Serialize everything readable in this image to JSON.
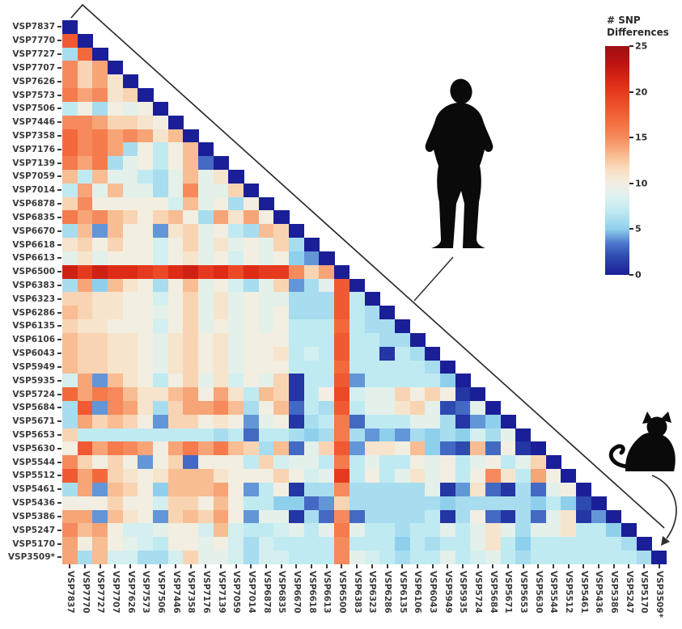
{
  "figure": {
    "background": "#ffffff",
    "colorbar": {
      "title_line1": "# SNP",
      "title_line2": "Differences",
      "ticks": [
        25,
        20,
        15,
        10,
        5,
        0
      ],
      "min": 0,
      "max": 25
    }
  },
  "chart_data": {
    "type": "heatmap",
    "title": "",
    "xlabel": "",
    "ylabel": "",
    "legend_title": "# SNP Differences",
    "colorbar_range": [
      0,
      25
    ],
    "colorbar_ticks": [
      0,
      5,
      10,
      15,
      20,
      25
    ],
    "grid": false,
    "shape": "lower-triangle",
    "diagonal_value": 0,
    "labels": [
      "VSP7837",
      "VSP7770",
      "VSP7727",
      "VSP7707",
      "VSP7626",
      "VSP7573",
      "VSP7506",
      "VSP7446",
      "VSP7358",
      "VSP7176",
      "VSP7139",
      "VSP7059",
      "VSP7014",
      "VSP6878",
      "VSP6835",
      "VSP6670",
      "VSP6618",
      "VSP6613",
      "VSP6500",
      "VSP6383",
      "VSP6323",
      "VSP6286",
      "VSP6135",
      "VSP6106",
      "VSP6043",
      "VSP5949",
      "VSP5935",
      "VSP5724",
      "VSP5684",
      "VSP5671",
      "VSP5653",
      "VSP5630",
      "VSP5544",
      "VSP5512",
      "VSP5461",
      "VSP5436",
      "VSP5386",
      "VSP5247",
      "VSP5170",
      "VSP3509*"
    ],
    "matrix_lower_triangle": [
      [
        0
      ],
      [
        18,
        0
      ],
      [
        6,
        17,
        0
      ],
      [
        15,
        12,
        14,
        0
      ],
      [
        15,
        12,
        14,
        11,
        0
      ],
      [
        16,
        14,
        15,
        11,
        12,
        0
      ],
      [
        7,
        10,
        6,
        10,
        9,
        10,
        0
      ],
      [
        15,
        15,
        14,
        12,
        12,
        11,
        10,
        0
      ],
      [
        17,
        15,
        16,
        14,
        15,
        14,
        11,
        13,
        0
      ],
      [
        17,
        15,
        16,
        14,
        6,
        10,
        7,
        10,
        13,
        0
      ],
      [
        16,
        14,
        16,
        6,
        9,
        10,
        7,
        10,
        13,
        3,
        0
      ],
      [
        13,
        7,
        13,
        9,
        9,
        7,
        6,
        9,
        13,
        9,
        11,
        0
      ],
      [
        7,
        14,
        9,
        13,
        9,
        9,
        6,
        9,
        15,
        9,
        9,
        12,
        0
      ],
      [
        12,
        15,
        10,
        10,
        10,
        10,
        10,
        8,
        13,
        9,
        10,
        6,
        10,
        0
      ],
      [
        16,
        14,
        15,
        13,
        12,
        10,
        12,
        13,
        10,
        6,
        14,
        11,
        14,
        10,
        0
      ],
      [
        6,
        13,
        4,
        13,
        10,
        10,
        4,
        11,
        12,
        9,
        10,
        7,
        6,
        13,
        12,
        0
      ],
      [
        11,
        12,
        10,
        12,
        10,
        10,
        8,
        10,
        12,
        9,
        11,
        9,
        10,
        9,
        12,
        6,
        0
      ],
      [
        9,
        11,
        9,
        10,
        10,
        10,
        8,
        10,
        11,
        9,
        10,
        8,
        10,
        9,
        10,
        5,
        4,
        0
      ],
      [
        22,
        20,
        22,
        21,
        21,
        20,
        19,
        21,
        22,
        20,
        21,
        19,
        21,
        20,
        20,
        15,
        12,
        14,
        0
      ],
      [
        6,
        14,
        5,
        13,
        11,
        10,
        6,
        10,
        13,
        9,
        10,
        8,
        6,
        9,
        12,
        4,
        6,
        9,
        18,
        0
      ],
      [
        12,
        12,
        11,
        11,
        10,
        10,
        8,
        10,
        12,
        9,
        11,
        9,
        10,
        9,
        9,
        6,
        6,
        6,
        18,
        7,
        0
      ],
      [
        13,
        12,
        11,
        11,
        10,
        10,
        9,
        10,
        12,
        9,
        11,
        9,
        10,
        9,
        10,
        6,
        6,
        6,
        18,
        7,
        6,
        0
      ],
      [
        12,
        11,
        11,
        10,
        10,
        10,
        8,
        10,
        12,
        9,
        10,
        9,
        10,
        9,
        10,
        7,
        7,
        7,
        17,
        7,
        6,
        6,
        0
      ],
      [
        13,
        12,
        12,
        11,
        11,
        10,
        9,
        11,
        12,
        10,
        11,
        9,
        10,
        10,
        10,
        7,
        7,
        7,
        18,
        7,
        7,
        6,
        6,
        0
      ],
      [
        13,
        12,
        12,
        11,
        11,
        10,
        9,
        11,
        12,
        10,
        11,
        9,
        10,
        10,
        11,
        7,
        8,
        7,
        18,
        7,
        7,
        1,
        7,
        6,
        0
      ],
      [
        13,
        12,
        12,
        11,
        11,
        10,
        9,
        11,
        12,
        10,
        11,
        9,
        10,
        10,
        10,
        7,
        7,
        7,
        17,
        7,
        7,
        7,
        7,
        7,
        6,
        0
      ],
      [
        8,
        14,
        4,
        13,
        11,
        10,
        7,
        10,
        12,
        9,
        11,
        8,
        10,
        9,
        12,
        1,
        7,
        7,
        18,
        4,
        7,
        7,
        7,
        7,
        7,
        5,
        0
      ],
      [
        17,
        14,
        16,
        15,
        13,
        11,
        11,
        13,
        14,
        10,
        14,
        11,
        7,
        13,
        12,
        1,
        7,
        10,
        19,
        8,
        9,
        9,
        12,
        10,
        12,
        10,
        1,
        0
      ],
      [
        6,
        18,
        4,
        15,
        14,
        11,
        6,
        12,
        14,
        14,
        15,
        13,
        6,
        10,
        13,
        3,
        7,
        6,
        18,
        7,
        9,
        9,
        11,
        12,
        9,
        2,
        3,
        9,
        0
      ],
      [
        6,
        14,
        12,
        13,
        12,
        10,
        4,
        12,
        12,
        10,
        11,
        10,
        4,
        9,
        10,
        1,
        6,
        7,
        16,
        3,
        7,
        7,
        7,
        9,
        9,
        6,
        1,
        4,
        5,
        0
      ],
      [
        12,
        7,
        7,
        7,
        7,
        7,
        7,
        7,
        7,
        7,
        6,
        7,
        3,
        7,
        7,
        6,
        5,
        6,
        16,
        6,
        4,
        5,
        4,
        6,
        5,
        6,
        5,
        8,
        6,
        9,
        0
      ],
      [
        10,
        18,
        14,
        16,
        15,
        14,
        10,
        14,
        16,
        14,
        16,
        13,
        12,
        6,
        13,
        3,
        9,
        12,
        18,
        4,
        11,
        11,
        10,
        13,
        5,
        3,
        2,
        13,
        3,
        10,
        1,
        0
      ],
      [
        15,
        12,
        10,
        12,
        10,
        4,
        10,
        12,
        3,
        10,
        10,
        10,
        7,
        12,
        8,
        9,
        9,
        7,
        16,
        7,
        9,
        7,
        7,
        10,
        9,
        10,
        7,
        9,
        10,
        7,
        9,
        12,
        0
      ],
      [
        18,
        14,
        17,
        12,
        11,
        10,
        11,
        13,
        13,
        13,
        11,
        10,
        10,
        10,
        12,
        10,
        8,
        9,
        20,
        7,
        10,
        7,
        9,
        11,
        9,
        10,
        7,
        10,
        15,
        11,
        7,
        14,
        10,
        0
      ],
      [
        6,
        14,
        4,
        13,
        12,
        10,
        5,
        13,
        13,
        13,
        14,
        10,
        4,
        7,
        10,
        1,
        6,
        6,
        15,
        6,
        6,
        6,
        6,
        6,
        9,
        1,
        4,
        11,
        3,
        1,
        6,
        3,
        9,
        10,
        0
      ],
      [
        10,
        10,
        10,
        12,
        10,
        10,
        8,
        12,
        12,
        10,
        13,
        10,
        7,
        7,
        5,
        5,
        3,
        4,
        12,
        6,
        6,
        6,
        6,
        6,
        6,
        5,
        6,
        6,
        6,
        6,
        6,
        5,
        7,
        5,
        2,
        0
      ],
      [
        14,
        14,
        4,
        13,
        11,
        10,
        4,
        12,
        13,
        12,
        14,
        10,
        4,
        9,
        9,
        1,
        6,
        3,
        15,
        3,
        6,
        6,
        6,
        6,
        7,
        1,
        6,
        10,
        3,
        1,
        6,
        3,
        9,
        11,
        1,
        4,
        0
      ],
      [
        15,
        13,
        14,
        10,
        8,
        8,
        9,
        10,
        10,
        8,
        13,
        8,
        7,
        7,
        8,
        9,
        7,
        9,
        16,
        9,
        7,
        7,
        6,
        7,
        7,
        9,
        7,
        9,
        11,
        9,
        6,
        9,
        9,
        11,
        7,
        7,
        5,
        0
      ],
      [
        14,
        10,
        13,
        10,
        9,
        8,
        7,
        10,
        10,
        9,
        10,
        8,
        6,
        8,
        7,
        7,
        7,
        7,
        15,
        7,
        7,
        7,
        5,
        7,
        6,
        7,
        7,
        9,
        11,
        7,
        5,
        7,
        7,
        7,
        7,
        7,
        7,
        6,
        0
      ],
      [
        14,
        6,
        13,
        8,
        8,
        6,
        6,
        8,
        12,
        9,
        9,
        8,
        6,
        8,
        8,
        7,
        7,
        7,
        15,
        9,
        8,
        7,
        6,
        7,
        7,
        9,
        7,
        8,
        9,
        7,
        6,
        7,
        7,
        7,
        7,
        7,
        7,
        7,
        6,
        0
      ]
    ],
    "colormap_stops": [
      [
        0,
        "#1a1f97"
      ],
      [
        2,
        "#2e4ab0"
      ],
      [
        3.5,
        "#4e79cd"
      ],
      [
        5,
        "#8ed0ec"
      ],
      [
        7,
        "#c0eaf2"
      ],
      [
        8.5,
        "#ddf1ef"
      ],
      [
        10,
        "#f2eee1"
      ],
      [
        11.5,
        "#fadfc2"
      ],
      [
        13,
        "#f8bd92"
      ],
      [
        15,
        "#f68a5c"
      ],
      [
        17,
        "#f3693b"
      ],
      [
        19,
        "#ec4927"
      ],
      [
        21,
        "#de2b16"
      ],
      [
        23,
        "#c01412"
      ],
      [
        25,
        "#9e0d13"
      ]
    ],
    "annotations": [
      {
        "type": "icon",
        "name": "human-silhouette"
      },
      {
        "type": "icon",
        "name": "cat-silhouette",
        "arrow_points_to": "VSP3509*"
      }
    ]
  }
}
